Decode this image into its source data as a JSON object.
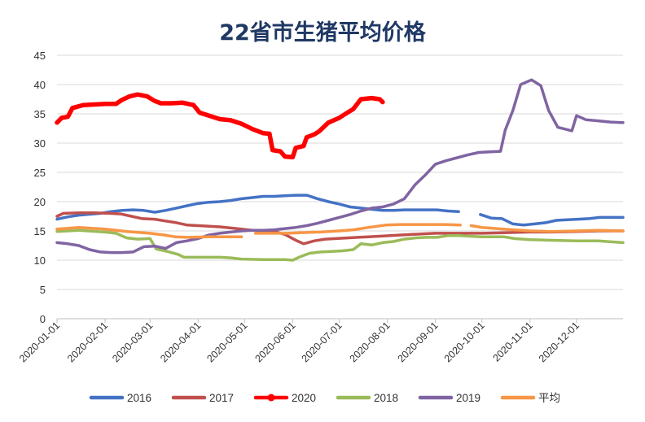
{
  "chart_data": {
    "type": "line",
    "title": "22省市生猪平均价格",
    "xlabel": "",
    "ylabel": "",
    "ylim": [
      0,
      45
    ],
    "yticks": [
      0,
      5,
      10,
      15,
      20,
      25,
      30,
      35,
      40,
      45
    ],
    "xlim": [
      "2020-01-01",
      "2020-12-31"
    ],
    "xticks": [
      "2020-01-01",
      "2020-02-01",
      "2020-03-01",
      "2020-04-01",
      "2020-05-01",
      "2020-06-01",
      "2020-07-01",
      "2020-08-01",
      "2020-09-01",
      "2020-10-01",
      "2020-11-01",
      "2020-12-01"
    ],
    "grid": "horizontal",
    "legend": "bottom",
    "series": [
      {
        "name": "2016",
        "color": "#4472c4",
        "points": [
          [
            "2020-01-01",
            17.0
          ],
          [
            "2020-01-08",
            17.4
          ],
          [
            "2020-01-15",
            17.7
          ],
          [
            "2020-01-29",
            18.0
          ],
          [
            "2020-02-05",
            18.3
          ],
          [
            "2020-02-12",
            18.5
          ],
          [
            "2020-02-19",
            18.6
          ],
          [
            "2020-02-26",
            18.5
          ],
          [
            "2020-03-04",
            18.2
          ],
          [
            "2020-03-11",
            18.5
          ],
          [
            "2020-03-18",
            18.9
          ],
          [
            "2020-03-25",
            19.3
          ],
          [
            "2020-04-01",
            19.7
          ],
          [
            "2020-04-08",
            19.9
          ],
          [
            "2020-04-15",
            20.0
          ],
          [
            "2020-04-22",
            20.2
          ],
          [
            "2020-04-29",
            20.5
          ],
          [
            "2020-05-06",
            20.7
          ],
          [
            "2020-05-13",
            20.9
          ],
          [
            "2020-05-20",
            20.9
          ],
          [
            "2020-05-27",
            21.0
          ],
          [
            "2020-06-03",
            21.1
          ],
          [
            "2020-06-10",
            21.1
          ],
          [
            "2020-06-17",
            20.5
          ],
          [
            "2020-06-24",
            20.0
          ],
          [
            "2020-07-01",
            19.6
          ],
          [
            "2020-07-08",
            19.1
          ],
          [
            "2020-07-15",
            18.9
          ],
          [
            "2020-07-22",
            18.7
          ],
          [
            "2020-07-29",
            18.5
          ],
          [
            "2020-08-05",
            18.5
          ],
          [
            "2020-08-12",
            18.6
          ],
          [
            "2020-08-19",
            18.6
          ],
          [
            "2020-08-26",
            18.6
          ],
          [
            "2020-09-02",
            18.6
          ],
          [
            "2020-09-09",
            18.4
          ],
          [
            "2020-09-16",
            18.3
          ],
          [
            null,
            null
          ],
          [
            "2020-09-30",
            17.8
          ],
          [
            "2020-10-07",
            17.2
          ],
          [
            "2020-10-14",
            17.1
          ],
          [
            "2020-10-21",
            16.2
          ],
          [
            "2020-10-28",
            16.0
          ],
          [
            "2020-11-04",
            16.2
          ],
          [
            "2020-11-11",
            16.4
          ],
          [
            "2020-11-18",
            16.8
          ],
          [
            "2020-11-25",
            16.9
          ],
          [
            "2020-12-02",
            17.0
          ],
          [
            "2020-12-09",
            17.1
          ],
          [
            "2020-12-16",
            17.3
          ],
          [
            "2020-12-23",
            17.3
          ],
          [
            "2020-12-31",
            17.3
          ]
        ]
      },
      {
        "name": "2017",
        "color": "#c0504d",
        "points": [
          [
            "2020-01-01",
            17.5
          ],
          [
            "2020-01-05",
            18.0
          ],
          [
            "2020-01-15",
            18.1
          ],
          [
            "2020-01-25",
            18.1
          ],
          [
            "2020-02-04",
            18.0
          ],
          [
            "2020-02-11",
            17.9
          ],
          [
            "2020-02-18",
            17.5
          ],
          [
            "2020-02-25",
            17.1
          ],
          [
            "2020-03-04",
            17.0
          ],
          [
            "2020-03-11",
            16.7
          ],
          [
            "2020-03-18",
            16.4
          ],
          [
            "2020-03-25",
            16.0
          ],
          [
            "2020-04-01",
            15.9
          ],
          [
            "2020-04-08",
            15.8
          ],
          [
            "2020-04-15",
            15.7
          ],
          [
            "2020-04-22",
            15.5
          ],
          [
            "2020-04-29",
            15.3
          ],
          [
            "2020-05-06",
            15.1
          ],
          [
            "2020-05-13",
            15.0
          ],
          [
            "2020-05-20",
            14.9
          ],
          [
            "2020-05-27",
            14.4
          ],
          [
            "2020-06-03",
            13.4
          ],
          [
            "2020-06-08",
            12.8
          ],
          [
            "2020-06-15",
            13.3
          ],
          [
            "2020-06-22",
            13.6
          ],
          [
            "2020-06-29",
            13.7
          ],
          [
            "2020-07-06",
            13.8
          ],
          [
            "2020-07-13",
            13.9
          ],
          [
            "2020-07-20",
            14.0
          ],
          [
            "2020-07-27",
            14.1
          ],
          [
            "2020-08-03",
            14.2
          ],
          [
            "2020-08-10",
            14.3
          ],
          [
            "2020-08-17",
            14.4
          ],
          [
            "2020-08-24",
            14.5
          ],
          [
            "2020-09-01",
            14.6
          ],
          [
            "2020-09-08",
            14.6
          ],
          [
            "2020-09-15",
            14.6
          ],
          [
            "2020-09-22",
            14.6
          ],
          [
            "2020-10-01",
            14.6
          ],
          [
            "2020-10-15",
            14.7
          ],
          [
            "2020-11-01",
            14.8
          ],
          [
            "2020-11-15",
            14.8
          ],
          [
            "2020-12-01",
            14.9
          ],
          [
            "2020-12-15",
            15.0
          ],
          [
            "2020-12-31",
            15.0
          ]
        ]
      },
      {
        "name": "2020",
        "color": "#ff0000",
        "points": [
          [
            "2020-01-01",
            33.5
          ],
          [
            "2020-01-04",
            34.3
          ],
          [
            "2020-01-08",
            34.5
          ],
          [
            "2020-01-11",
            36.0
          ],
          [
            "2020-01-18",
            36.5
          ],
          [
            "2020-01-25",
            36.6
          ],
          [
            "2020-02-01",
            36.7
          ],
          [
            "2020-02-08",
            36.7
          ],
          [
            "2020-02-12",
            37.4
          ],
          [
            "2020-02-17",
            38.0
          ],
          [
            "2020-02-22",
            38.3
          ],
          [
            "2020-02-28",
            38.0
          ],
          [
            "2020-03-04",
            37.2
          ],
          [
            "2020-03-08",
            36.8
          ],
          [
            "2020-03-15",
            36.8
          ],
          [
            "2020-03-22",
            36.9
          ],
          [
            "2020-03-29",
            36.5
          ],
          [
            "2020-04-02",
            35.2
          ],
          [
            "2020-04-08",
            34.7
          ],
          [
            "2020-04-15",
            34.1
          ],
          [
            "2020-04-22",
            33.9
          ],
          [
            "2020-04-29",
            33.3
          ],
          [
            "2020-05-06",
            32.4
          ],
          [
            "2020-05-13",
            31.7
          ],
          [
            "2020-05-17",
            31.6
          ],
          [
            "2020-05-19",
            28.8
          ],
          [
            "2020-05-24",
            28.6
          ],
          [
            "2020-05-27",
            27.7
          ],
          [
            "2020-06-01",
            27.6
          ],
          [
            "2020-06-03",
            29.2
          ],
          [
            "2020-06-08",
            29.5
          ],
          [
            "2020-06-10",
            31.0
          ],
          [
            "2020-06-15",
            31.5
          ],
          [
            "2020-06-18",
            32.0
          ],
          [
            "2020-06-24",
            33.5
          ],
          [
            "2020-07-01",
            34.3
          ],
          [
            "2020-07-05",
            35.0
          ],
          [
            "2020-07-10",
            35.8
          ],
          [
            "2020-07-15",
            37.5
          ],
          [
            "2020-07-22",
            37.7
          ],
          [
            "2020-07-27",
            37.5
          ],
          [
            "2020-07-29",
            37.0
          ]
        ]
      },
      {
        "name": "2018",
        "color": "#9bbb59",
        "points": [
          [
            "2020-01-01",
            14.9
          ],
          [
            "2020-01-15",
            15.1
          ],
          [
            "2020-02-01",
            14.8
          ],
          [
            "2020-02-08",
            14.6
          ],
          [
            "2020-02-15",
            13.8
          ],
          [
            "2020-02-22",
            13.6
          ],
          [
            "2020-03-01",
            13.7
          ],
          [
            "2020-03-05",
            11.9
          ],
          [
            "2020-03-12",
            11.5
          ],
          [
            "2020-03-19",
            11.0
          ],
          [
            "2020-03-23",
            10.5
          ],
          [
            "2020-04-01",
            10.5
          ],
          [
            "2020-04-15",
            10.5
          ],
          [
            "2020-04-22",
            10.4
          ],
          [
            "2020-04-29",
            10.2
          ],
          [
            "2020-05-13",
            10.1
          ],
          [
            "2020-05-27",
            10.1
          ],
          [
            "2020-06-01",
            10.0
          ],
          [
            "2020-06-05",
            10.5
          ],
          [
            "2020-06-12",
            11.2
          ],
          [
            "2020-06-19",
            11.4
          ],
          [
            "2020-06-26",
            11.5
          ],
          [
            "2020-07-03",
            11.6
          ],
          [
            "2020-07-10",
            11.8
          ],
          [
            "2020-07-15",
            12.8
          ],
          [
            "2020-07-22",
            12.6
          ],
          [
            "2020-07-29",
            13.0
          ],
          [
            "2020-08-05",
            13.2
          ],
          [
            "2020-08-12",
            13.6
          ],
          [
            "2020-08-19",
            13.8
          ],
          [
            "2020-08-26",
            13.9
          ],
          [
            "2020-09-02",
            13.9
          ],
          [
            "2020-09-09",
            14.2
          ],
          [
            "2020-09-16",
            14.2
          ],
          [
            "2020-09-23",
            14.1
          ],
          [
            "2020-10-01",
            14.0
          ],
          [
            "2020-10-15",
            14.0
          ],
          [
            "2020-10-22",
            13.7
          ],
          [
            "2020-11-01",
            13.5
          ],
          [
            "2020-11-15",
            13.4
          ],
          [
            "2020-12-01",
            13.3
          ],
          [
            "2020-12-15",
            13.3
          ],
          [
            "2020-12-31",
            13.0
          ]
        ]
      },
      {
        "name": "2019",
        "color": "#8064a2",
        "points": [
          [
            "2020-01-01",
            13.0
          ],
          [
            "2020-01-08",
            12.8
          ],
          [
            "2020-01-15",
            12.5
          ],
          [
            "2020-01-22",
            11.8
          ],
          [
            "2020-01-29",
            11.4
          ],
          [
            "2020-02-05",
            11.3
          ],
          [
            "2020-02-12",
            11.3
          ],
          [
            "2020-02-19",
            11.4
          ],
          [
            "2020-02-26",
            12.3
          ],
          [
            "2020-03-04",
            12.4
          ],
          [
            "2020-03-11",
            12.0
          ],
          [
            "2020-03-18",
            13.0
          ],
          [
            "2020-03-25",
            13.3
          ],
          [
            "2020-04-01",
            13.7
          ],
          [
            "2020-04-08",
            14.3
          ],
          [
            "2020-04-15",
            14.6
          ],
          [
            "2020-04-22",
            14.8
          ],
          [
            "2020-04-29",
            15.0
          ],
          [
            "2020-05-06",
            15.1
          ],
          [
            "2020-05-13",
            15.1
          ],
          [
            "2020-05-20",
            15.2
          ],
          [
            "2020-05-27",
            15.4
          ],
          [
            "2020-06-03",
            15.6
          ],
          [
            "2020-06-10",
            15.9
          ],
          [
            "2020-06-17",
            16.3
          ],
          [
            "2020-06-24",
            16.8
          ],
          [
            "2020-07-01",
            17.3
          ],
          [
            "2020-07-08",
            17.8
          ],
          [
            "2020-07-15",
            18.4
          ],
          [
            "2020-07-22",
            18.9
          ],
          [
            "2020-07-29",
            19.1
          ],
          [
            "2020-08-05",
            19.6
          ],
          [
            "2020-08-12",
            20.5
          ],
          [
            "2020-08-19",
            22.9
          ],
          [
            "2020-08-26",
            24.7
          ],
          [
            "2020-09-01",
            26.4
          ],
          [
            "2020-09-08",
            27.0
          ],
          [
            "2020-09-15",
            27.5
          ],
          [
            "2020-09-22",
            28.0
          ],
          [
            "2020-09-29",
            28.4
          ],
          [
            "2020-10-06",
            28.5
          ],
          [
            "2020-10-13",
            28.6
          ],
          [
            "2020-10-16",
            32.2
          ],
          [
            "2020-10-21",
            35.6
          ],
          [
            "2020-10-26",
            40.0
          ],
          [
            "2020-11-02",
            40.8
          ],
          [
            "2020-11-08",
            39.8
          ],
          [
            "2020-11-13",
            35.6
          ],
          [
            "2020-11-19",
            32.7
          ],
          [
            "2020-11-25",
            32.3
          ],
          [
            "2020-11-28",
            32.1
          ],
          [
            "2020-12-01",
            34.7
          ],
          [
            "2020-12-07",
            34.0
          ],
          [
            "2020-12-15",
            33.8
          ],
          [
            "2020-12-23",
            33.6
          ],
          [
            "2020-12-31",
            33.5
          ]
        ]
      },
      {
        "name": "平均",
        "color": "#f79646",
        "points": [
          [
            "2020-01-01",
            15.3
          ],
          [
            "2020-01-15",
            15.6
          ],
          [
            "2020-02-01",
            15.3
          ],
          [
            "2020-02-15",
            14.9
          ],
          [
            "2020-03-01",
            14.6
          ],
          [
            "2020-03-10",
            14.3
          ],
          [
            "2020-03-17",
            14.0
          ],
          [
            "2020-03-25",
            13.9
          ],
          [
            "2020-04-08",
            14.0
          ],
          [
            "2020-04-22",
            14.0
          ],
          [
            "2020-04-29",
            14.0
          ],
          [
            null,
            null
          ],
          [
            "2020-05-08",
            14.6
          ],
          [
            "2020-05-15",
            14.6
          ],
          [
            "2020-05-22",
            14.6
          ],
          [
            "2020-05-29",
            14.6
          ],
          [
            "2020-06-05",
            14.7
          ],
          [
            "2020-06-19",
            14.8
          ],
          [
            "2020-07-01",
            15.0
          ],
          [
            "2020-07-10",
            15.2
          ],
          [
            "2020-07-20",
            15.6
          ],
          [
            "2020-07-31",
            16.0
          ],
          [
            "2020-08-10",
            16.1
          ],
          [
            "2020-08-24",
            16.1
          ],
          [
            "2020-09-07",
            16.1
          ],
          [
            "2020-09-17",
            16.0
          ],
          [
            null,
            null
          ],
          [
            "2020-09-24",
            15.9
          ],
          [
            "2020-10-01",
            15.6
          ],
          [
            "2020-10-15",
            15.3
          ],
          [
            "2020-11-01",
            15.0
          ],
          [
            "2020-11-15",
            14.9
          ],
          [
            "2020-12-01",
            15.0
          ],
          [
            "2020-12-15",
            15.1
          ],
          [
            "2020-12-31",
            15.0
          ]
        ]
      }
    ]
  }
}
